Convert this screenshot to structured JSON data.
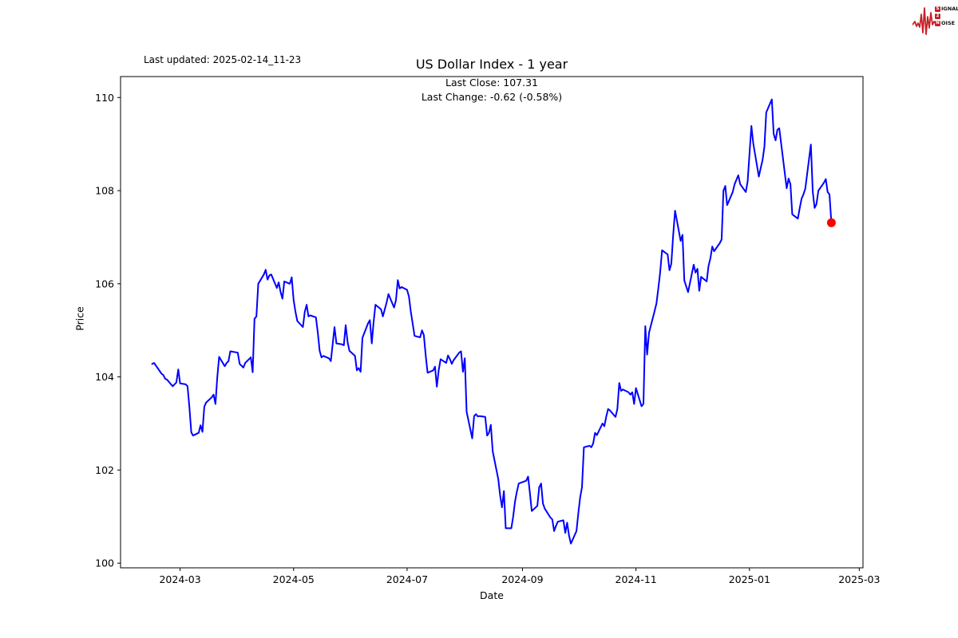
{
  "window": {
    "background": "#ffffff"
  },
  "annotations": {
    "last_updated": "Last updated: 2025-02-14_11-23"
  },
  "header": {
    "title": "US Dollar Index - 1 year",
    "last_close_line": "Last Close: 107.31",
    "last_change_line": "Last Change: -0.62 (-0.58%)"
  },
  "logo": {
    "name": "signal-2-noise",
    "accent": "#c8202a",
    "row1_boxed": "S",
    "row1_rest": "IGNAL",
    "row2_boxed": "2",
    "row2_rest": "",
    "row3_boxed": "N",
    "row3_rest": "OISE"
  },
  "chart_data": {
    "type": "line",
    "title": "US Dollar Index - 1 year",
    "xlabel": "Date",
    "ylabel": "Price",
    "legend": "none",
    "grid": false,
    "line_color": "#0000ff",
    "line_width": 2,
    "marker_color": "#ff0000",
    "marker_radius": 5.5,
    "last_close": 107.31,
    "last_change": -0.62,
    "last_change_pct": "-0.58%",
    "y_ticks": [
      100,
      102,
      104,
      106,
      108,
      110
    ],
    "x_tick_labels": [
      "2024-03",
      "2024-05",
      "2024-07",
      "2024-09",
      "2024-11",
      "2025-01",
      "2025-03"
    ],
    "x_tick_dates": [
      "2024-03-01",
      "2024-05-01",
      "2024-07-01",
      "2024-09-01",
      "2024-11-01",
      "2025-01-01",
      "2025-03-01"
    ],
    "xlim": [
      "2024-01-29",
      "2025-03-03"
    ],
    "ylim": [
      99.9,
      110.45
    ],
    "series": [
      {
        "name": "US Dollar Index",
        "points": [
          [
            "2024-02-15",
            104.28
          ],
          [
            "2024-02-16",
            104.3
          ],
          [
            "2024-02-20",
            104.07
          ],
          [
            "2024-02-21",
            104.04
          ],
          [
            "2024-02-22",
            103.96
          ],
          [
            "2024-02-23",
            103.94
          ],
          [
            "2024-02-26",
            103.8
          ],
          [
            "2024-02-27",
            103.84
          ],
          [
            "2024-02-28",
            103.88
          ],
          [
            "2024-02-29",
            104.16
          ],
          [
            "2024-03-01",
            103.86
          ],
          [
            "2024-03-04",
            103.84
          ],
          [
            "2024-03-05",
            103.8
          ],
          [
            "2024-03-06",
            103.36
          ],
          [
            "2024-03-07",
            102.81
          ],
          [
            "2024-03-08",
            102.74
          ],
          [
            "2024-03-11",
            102.8
          ],
          [
            "2024-03-12",
            102.96
          ],
          [
            "2024-03-13",
            102.82
          ],
          [
            "2024-03-14",
            103.36
          ],
          [
            "2024-03-15",
            103.45
          ],
          [
            "2024-03-18",
            103.56
          ],
          [
            "2024-03-19",
            103.62
          ],
          [
            "2024-03-20",
            103.42
          ],
          [
            "2024-03-21",
            104.0
          ],
          [
            "2024-03-22",
            104.43
          ],
          [
            "2024-03-25",
            104.23
          ],
          [
            "2024-03-26",
            104.3
          ],
          [
            "2024-03-27",
            104.34
          ],
          [
            "2024-03-28",
            104.55
          ],
          [
            "2024-04-01",
            104.52
          ],
          [
            "2024-04-02",
            104.28
          ],
          [
            "2024-04-03",
            104.24
          ],
          [
            "2024-04-04",
            104.2
          ],
          [
            "2024-04-05",
            104.3
          ],
          [
            "2024-04-08",
            104.42
          ],
          [
            "2024-04-09",
            104.1
          ],
          [
            "2024-04-10",
            105.25
          ],
          [
            "2024-04-11",
            105.3
          ],
          [
            "2024-04-12",
            106.0
          ],
          [
            "2024-04-15",
            106.2
          ],
          [
            "2024-04-16",
            106.3
          ],
          [
            "2024-04-17",
            106.09
          ],
          [
            "2024-04-18",
            106.18
          ],
          [
            "2024-04-19",
            106.2
          ],
          [
            "2024-04-22",
            105.91
          ],
          [
            "2024-04-23",
            106.03
          ],
          [
            "2024-04-24",
            105.82
          ],
          [
            "2024-04-25",
            105.68
          ],
          [
            "2024-04-26",
            106.05
          ],
          [
            "2024-04-29",
            106.0
          ],
          [
            "2024-04-30",
            106.14
          ],
          [
            "2024-05-01",
            105.65
          ],
          [
            "2024-05-02",
            105.4
          ],
          [
            "2024-05-03",
            105.2
          ],
          [
            "2024-05-06",
            105.07
          ],
          [
            "2024-05-07",
            105.4
          ],
          [
            "2024-05-08",
            105.55
          ],
          [
            "2024-05-09",
            105.3
          ],
          [
            "2024-05-10",
            105.32
          ],
          [
            "2024-05-13",
            105.28
          ],
          [
            "2024-05-14",
            104.95
          ],
          [
            "2024-05-15",
            104.56
          ],
          [
            "2024-05-16",
            104.42
          ],
          [
            "2024-05-17",
            104.45
          ],
          [
            "2024-05-20",
            104.4
          ],
          [
            "2024-05-21",
            104.34
          ],
          [
            "2024-05-22",
            104.7
          ],
          [
            "2024-05-23",
            105.07
          ],
          [
            "2024-05-24",
            104.72
          ],
          [
            "2024-05-27",
            104.7
          ],
          [
            "2024-05-28",
            104.68
          ],
          [
            "2024-05-29",
            105.11
          ],
          [
            "2024-05-30",
            104.75
          ],
          [
            "2024-05-31",
            104.56
          ],
          [
            "2024-06-03",
            104.45
          ],
          [
            "2024-06-04",
            104.14
          ],
          [
            "2024-06-05",
            104.19
          ],
          [
            "2024-06-06",
            104.11
          ],
          [
            "2024-06-07",
            104.84
          ],
          [
            "2024-06-10",
            105.15
          ],
          [
            "2024-06-11",
            105.22
          ],
          [
            "2024-06-12",
            104.72
          ],
          [
            "2024-06-13",
            105.18
          ],
          [
            "2024-06-14",
            105.55
          ],
          [
            "2024-06-17",
            105.45
          ],
          [
            "2024-06-18",
            105.3
          ],
          [
            "2024-06-20",
            105.6
          ],
          [
            "2024-06-21",
            105.78
          ],
          [
            "2024-06-24",
            105.49
          ],
          [
            "2024-06-25",
            105.65
          ],
          [
            "2024-06-26",
            106.08
          ],
          [
            "2024-06-27",
            105.9
          ],
          [
            "2024-06-28",
            105.93
          ],
          [
            "2024-07-01",
            105.87
          ],
          [
            "2024-07-02",
            105.72
          ],
          [
            "2024-07-03",
            105.4
          ],
          [
            "2024-07-05",
            104.88
          ],
          [
            "2024-07-08",
            104.85
          ],
          [
            "2024-07-09",
            105.0
          ],
          [
            "2024-07-10",
            104.9
          ],
          [
            "2024-07-11",
            104.45
          ],
          [
            "2024-07-12",
            104.09
          ],
          [
            "2024-07-15",
            104.14
          ],
          [
            "2024-07-16",
            104.22
          ],
          [
            "2024-07-17",
            103.79
          ],
          [
            "2024-07-18",
            104.15
          ],
          [
            "2024-07-19",
            104.38
          ],
          [
            "2024-07-22",
            104.3
          ],
          [
            "2024-07-23",
            104.46
          ],
          [
            "2024-07-24",
            104.38
          ],
          [
            "2024-07-25",
            104.28
          ],
          [
            "2024-07-26",
            104.36
          ],
          [
            "2024-07-29",
            104.52
          ],
          [
            "2024-07-30",
            104.55
          ],
          [
            "2024-07-31",
            104.11
          ],
          [
            "2024-08-01",
            104.4
          ],
          [
            "2024-08-02",
            103.25
          ],
          [
            "2024-08-05",
            102.68
          ],
          [
            "2024-08-06",
            103.16
          ],
          [
            "2024-08-07",
            103.2
          ],
          [
            "2024-08-08",
            103.15
          ],
          [
            "2024-08-09",
            103.16
          ],
          [
            "2024-08-12",
            103.14
          ],
          [
            "2024-08-13",
            102.74
          ],
          [
            "2024-08-14",
            102.8
          ],
          [
            "2024-08-15",
            102.97
          ],
          [
            "2024-08-16",
            102.4
          ],
          [
            "2024-08-19",
            101.8
          ],
          [
            "2024-08-20",
            101.45
          ],
          [
            "2024-08-21",
            101.2
          ],
          [
            "2024-08-22",
            101.55
          ],
          [
            "2024-08-23",
            100.75
          ],
          [
            "2024-08-26",
            100.75
          ],
          [
            "2024-08-27",
            101.0
          ],
          [
            "2024-08-28",
            101.32
          ],
          [
            "2024-08-29",
            101.54
          ],
          [
            "2024-08-30",
            101.71
          ],
          [
            "2024-09-03",
            101.77
          ],
          [
            "2024-09-04",
            101.86
          ],
          [
            "2024-09-05",
            101.5
          ],
          [
            "2024-09-06",
            101.12
          ],
          [
            "2024-09-09",
            101.23
          ],
          [
            "2024-09-10",
            101.63
          ],
          [
            "2024-09-11",
            101.71
          ],
          [
            "2024-09-12",
            101.28
          ],
          [
            "2024-09-13",
            101.17
          ],
          [
            "2024-09-16",
            100.98
          ],
          [
            "2024-09-17",
            100.94
          ],
          [
            "2024-09-18",
            100.69
          ],
          [
            "2024-09-19",
            100.8
          ],
          [
            "2024-09-20",
            100.89
          ],
          [
            "2024-09-23",
            100.92
          ],
          [
            "2024-09-24",
            100.65
          ],
          [
            "2024-09-25",
            100.87
          ],
          [
            "2024-09-26",
            100.6
          ],
          [
            "2024-09-27",
            100.42
          ],
          [
            "2024-09-30",
            100.69
          ],
          [
            "2024-10-01",
            101.07
          ],
          [
            "2024-10-02",
            101.41
          ],
          [
            "2024-10-03",
            101.63
          ],
          [
            "2024-10-04",
            102.49
          ],
          [
            "2024-10-07",
            102.52
          ],
          [
            "2024-10-08",
            102.49
          ],
          [
            "2024-10-09",
            102.57
          ],
          [
            "2024-10-10",
            102.8
          ],
          [
            "2024-10-11",
            102.75
          ],
          [
            "2024-10-14",
            103.0
          ],
          [
            "2024-10-15",
            102.94
          ],
          [
            "2024-10-16",
            103.14
          ],
          [
            "2024-10-17",
            103.31
          ],
          [
            "2024-10-18",
            103.28
          ],
          [
            "2024-10-21",
            103.14
          ],
          [
            "2024-10-22",
            103.31
          ],
          [
            "2024-10-23",
            103.87
          ],
          [
            "2024-10-24",
            103.7
          ],
          [
            "2024-10-25",
            103.73
          ],
          [
            "2024-10-28",
            103.67
          ],
          [
            "2024-10-29",
            103.62
          ],
          [
            "2024-10-30",
            103.67
          ],
          [
            "2024-10-31",
            103.42
          ],
          [
            "2024-11-01",
            103.76
          ],
          [
            "2024-11-04",
            103.37
          ],
          [
            "2024-11-05",
            103.42
          ],
          [
            "2024-11-06",
            105.09
          ],
          [
            "2024-11-07",
            104.48
          ],
          [
            "2024-11-08",
            104.95
          ],
          [
            "2024-11-11",
            105.41
          ],
          [
            "2024-11-12",
            105.58
          ],
          [
            "2024-11-13",
            105.9
          ],
          [
            "2024-11-14",
            106.24
          ],
          [
            "2024-11-15",
            106.72
          ],
          [
            "2024-11-18",
            106.63
          ],
          [
            "2024-11-19",
            106.29
          ],
          [
            "2024-11-20",
            106.43
          ],
          [
            "2024-11-21",
            107.06
          ],
          [
            "2024-11-22",
            107.57
          ],
          [
            "2024-11-25",
            106.92
          ],
          [
            "2024-11-26",
            107.05
          ],
          [
            "2024-11-27",
            106.07
          ],
          [
            "2024-11-29",
            105.82
          ],
          [
            "2024-12-02",
            106.41
          ],
          [
            "2024-12-03",
            106.24
          ],
          [
            "2024-12-04",
            106.32
          ],
          [
            "2024-12-05",
            105.85
          ],
          [
            "2024-12-06",
            106.15
          ],
          [
            "2024-12-09",
            106.05
          ],
          [
            "2024-12-10",
            106.38
          ],
          [
            "2024-12-11",
            106.55
          ],
          [
            "2024-12-12",
            106.8
          ],
          [
            "2024-12-13",
            106.7
          ],
          [
            "2024-12-16",
            106.87
          ],
          [
            "2024-12-17",
            106.95
          ],
          [
            "2024-12-18",
            108.0
          ],
          [
            "2024-12-19",
            108.1
          ],
          [
            "2024-12-20",
            107.69
          ],
          [
            "2024-12-23",
            107.97
          ],
          [
            "2024-12-24",
            108.14
          ],
          [
            "2024-12-26",
            108.33
          ],
          [
            "2024-12-27",
            108.14
          ],
          [
            "2024-12-30",
            107.97
          ],
          [
            "2024-12-31",
            108.2
          ],
          [
            "2025-01-02",
            109.39
          ],
          [
            "2025-01-03",
            109.02
          ],
          [
            "2025-01-06",
            108.3
          ],
          [
            "2025-01-07",
            108.48
          ],
          [
            "2025-01-08",
            108.65
          ],
          [
            "2025-01-09",
            108.94
          ],
          [
            "2025-01-10",
            109.68
          ],
          [
            "2025-01-13",
            109.96
          ],
          [
            "2025-01-14",
            109.22
          ],
          [
            "2025-01-15",
            109.08
          ],
          [
            "2025-01-16",
            109.31
          ],
          [
            "2025-01-17",
            109.34
          ],
          [
            "2025-01-21",
            108.05
          ],
          [
            "2025-01-22",
            108.26
          ],
          [
            "2025-01-23",
            108.14
          ],
          [
            "2025-01-24",
            107.49
          ],
          [
            "2025-01-27",
            107.4
          ],
          [
            "2025-01-28",
            107.63
          ],
          [
            "2025-01-29",
            107.83
          ],
          [
            "2025-01-30",
            107.92
          ],
          [
            "2025-01-31",
            108.04
          ],
          [
            "2025-02-03",
            108.99
          ],
          [
            "2025-02-04",
            107.97
          ],
          [
            "2025-02-05",
            107.63
          ],
          [
            "2025-02-06",
            107.71
          ],
          [
            "2025-02-07",
            108.0
          ],
          [
            "2025-02-10",
            108.17
          ],
          [
            "2025-02-11",
            108.25
          ],
          [
            "2025-02-12",
            107.97
          ],
          [
            "2025-02-13",
            107.92
          ],
          [
            "2025-02-14",
            107.31
          ]
        ]
      }
    ]
  }
}
